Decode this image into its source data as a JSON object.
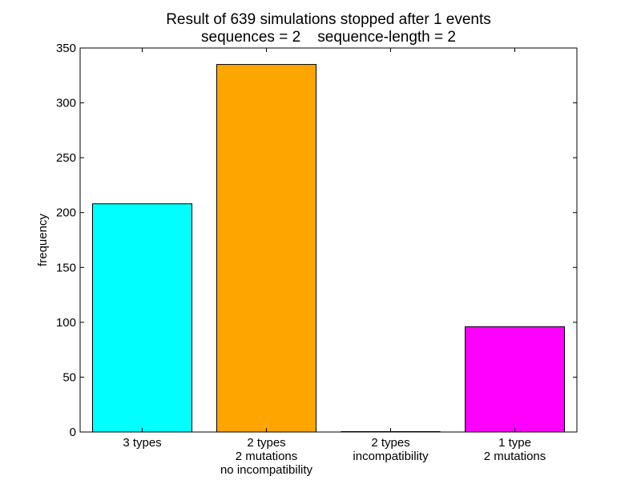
{
  "chart_data": {
    "type": "bar",
    "title": "Result of 639 simulations stopped after 1 events",
    "subtitle": "sequences = 2    sequence-length = 2",
    "xlabel": "",
    "ylabel": "frequency",
    "ylim": [
      0,
      350
    ],
    "yticks": [
      0,
      50,
      100,
      150,
      200,
      250,
      300,
      350
    ],
    "categories": [
      [
        "3 types"
      ],
      [
        "2 types",
        "2 mutations",
        "no incompatibility"
      ],
      [
        "2 types",
        "incompatibility"
      ],
      [
        "1 type",
        "2 mutations"
      ]
    ],
    "values": [
      208,
      335,
      0,
      96
    ],
    "colors": [
      "#00ffff",
      "#ffa500",
      "#0000ff",
      "#ff00ff"
    ],
    "grid": false,
    "legend": "none"
  }
}
